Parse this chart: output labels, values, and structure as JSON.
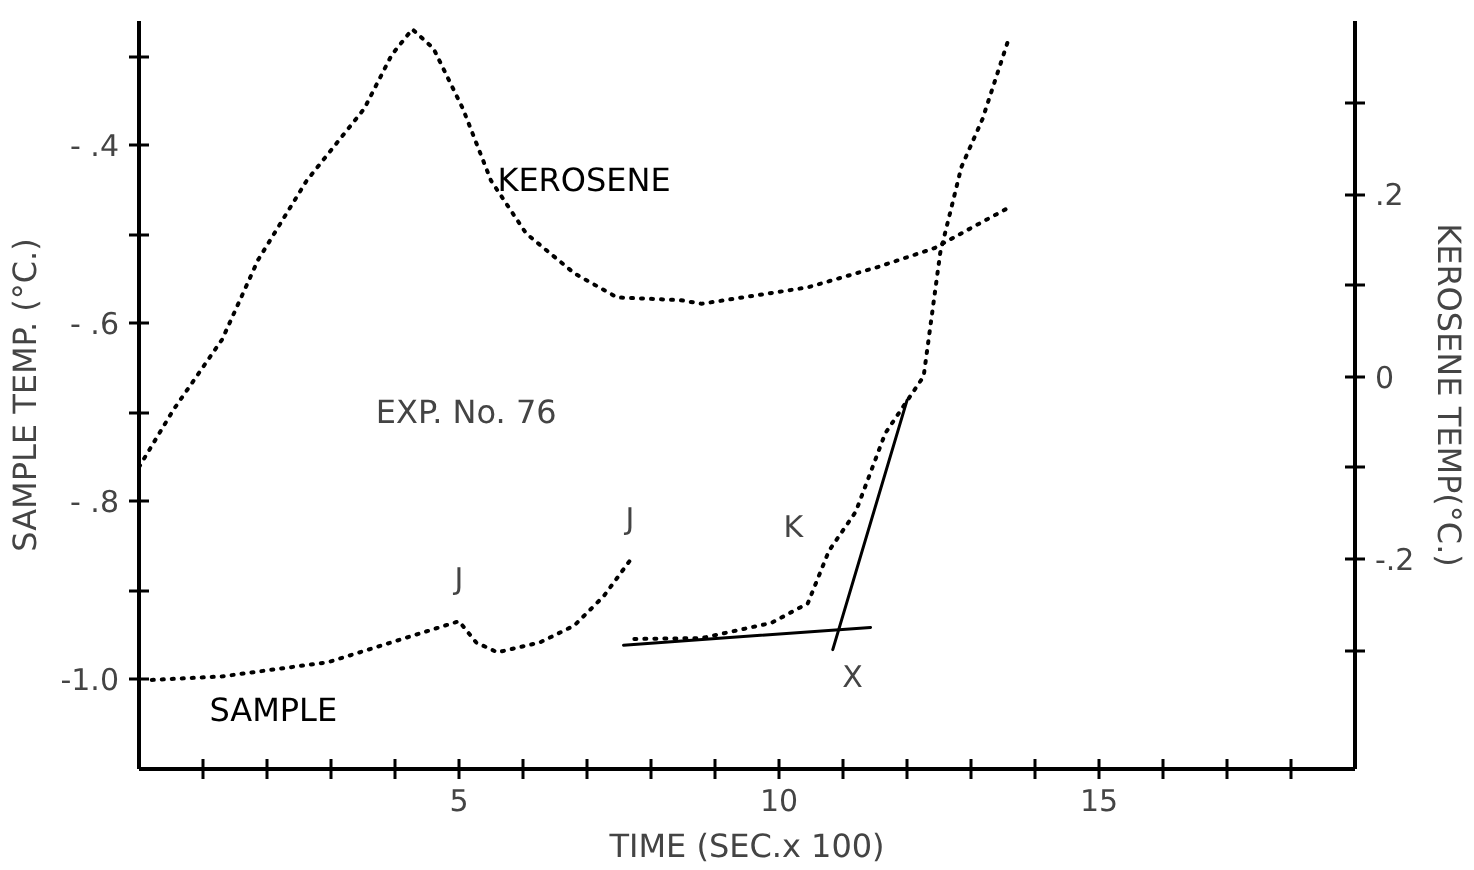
{
  "chart_data": {
    "type": "line",
    "xlabel": "TIME (SEC.x 100)",
    "ylabel": "SAMPLE TEMP. (°C.)",
    "y2label": "KEROSENE TEMP(°C.)",
    "xlim": [
      0,
      19
    ],
    "ylim": [
      -1.1,
      -0.26
    ],
    "y2lim": [
      -0.43,
      0.39
    ],
    "xticks": [
      {
        "value": 1,
        "label": null
      },
      {
        "value": 2,
        "label": null
      },
      {
        "value": 3,
        "label": null
      },
      {
        "value": 4,
        "label": null
      },
      5,
      {
        "value": 6,
        "label": null
      },
      {
        "value": 7,
        "label": null
      },
      {
        "value": 8,
        "label": null
      },
      {
        "value": 9,
        "label": null
      },
      10,
      {
        "value": 11,
        "label": null
      },
      {
        "value": 12,
        "label": null
      },
      {
        "value": 13,
        "label": null
      },
      {
        "value": 14,
        "label": null
      },
      15,
      {
        "value": 16,
        "label": null
      },
      {
        "value": 17,
        "label": null
      },
      {
        "value": 18,
        "label": null
      }
    ],
    "yticks": [
      {
        "value": -0.3,
        "label": null
      },
      {
        "value": -0.4,
        "label": "- .4"
      },
      {
        "value": -0.5,
        "label": null
      },
      {
        "value": -0.6,
        "label": "- .6"
      },
      {
        "value": -0.7,
        "label": null
      },
      {
        "value": -0.8,
        "label": "- .8"
      },
      {
        "value": -0.9,
        "label": null
      },
      {
        "value": -1.0,
        "label": "-1.0"
      }
    ],
    "y2ticks": [
      {
        "value": 0.3,
        "label": null
      },
      {
        "value": 0.2,
        "label": ".2"
      },
      {
        "value": 0.1,
        "label": null
      },
      0,
      {
        "value": -0.1,
        "label": null
      },
      {
        "value": -0.2,
        "label": "-.2"
      },
      {
        "value": -0.3,
        "label": null
      }
    ],
    "grid": false,
    "line_style": "dotted",
    "series": [
      {
        "name": "KEROSENE",
        "axis": "y2",
        "color": "#000000",
        "x": [
          0,
          0.54,
          1.3,
          1.86,
          2.62,
          3.52,
          3.95,
          4.27,
          4.6,
          5.06,
          5.5,
          6.05,
          6.81,
          7.47,
          8.46,
          8.79,
          10.45,
          11.53,
          12.43,
          13.0,
          13.58
        ],
        "values": [
          -0.099,
          -0.036,
          0.041,
          0.128,
          0.215,
          0.294,
          0.353,
          0.381,
          0.36,
          0.294,
          0.215,
          0.157,
          0.113,
          0.087,
          0.084,
          0.08,
          0.098,
          0.12,
          0.141,
          0.163,
          0.185
        ]
      },
      {
        "name": "SAMPLE",
        "color": "#000000",
        "x": [
          0.2,
          1.3,
          2.96,
          4.07,
          5.0,
          5.27,
          5.6,
          6.26,
          6.8,
          7.26,
          7.67,
          7.72,
          7.74,
          8.79,
          9.88,
          10.45,
          10.78,
          11.2,
          11.66,
          12.26,
          12.52,
          12.85,
          13.18,
          13.58
        ],
        "values": [
          -1.0,
          -0.996,
          -0.98,
          -0.955,
          -0.934,
          -0.958,
          -0.969,
          -0.958,
          -0.939,
          -0.906,
          -0.866,
          null,
          -0.954,
          -0.953,
          -0.936,
          -0.914,
          -0.855,
          -0.811,
          -0.723,
          -0.659,
          -0.52,
          -0.424,
          -0.37,
          -0.282
        ]
      },
      {
        "type": "line",
        "line_style": "solid",
        "color": "#000000",
        "x": [
          7.57,
          11.43
        ],
        "values": [
          -0.961,
          -0.941
        ]
      },
      {
        "type": "line",
        "line_style": "solid",
        "color": "#000000",
        "x": [
          10.84,
          12.0
        ],
        "values": [
          -0.966,
          -0.686
        ]
      }
    ],
    "annotations": [
      "EXP. No. 76",
      {
        "text": "J",
        "x": 5.0,
        "y": -0.934
      },
      {
        "text": "J",
        "x": 7.67,
        "y": -0.866
      },
      {
        "text": "K",
        "x": 10.6,
        "y": -0.88
      },
      {
        "text": "X",
        "x": 10.9,
        "y": -0.945
      }
    ]
  }
}
